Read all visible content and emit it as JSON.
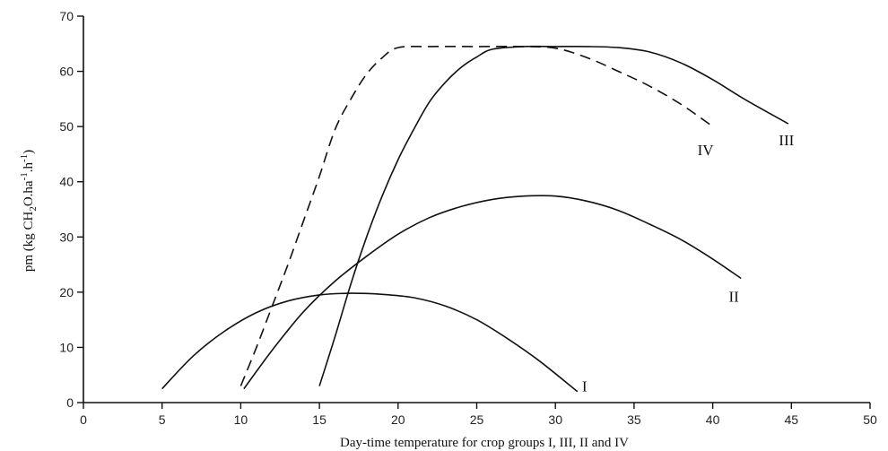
{
  "chart_data": {
    "type": "line",
    "xlabel": "Day-time temperature for crop groups I, III, II and IV",
    "ylabel_parts": [
      "pm (kg CH",
      "2",
      "O.ha",
      "-1",
      ".h",
      "-1",
      ")"
    ],
    "xlim": [
      0,
      50
    ],
    "ylim": [
      0,
      70
    ],
    "xticks": [
      0,
      5,
      10,
      15,
      20,
      25,
      30,
      35,
      40,
      45,
      50
    ],
    "yticks": [
      0,
      10,
      20,
      30,
      40,
      50,
      60,
      70
    ],
    "grid": false,
    "legend": "none",
    "series": [
      {
        "name": "I",
        "style": "solid",
        "x": [
          5,
          7,
          9,
          11,
          13,
          15,
          17,
          19,
          21,
          23,
          25,
          27,
          29,
          31.4
        ],
        "y": [
          2.5,
          8.5,
          13,
          16.3,
          18.4,
          19.5,
          19.8,
          19.6,
          19,
          17.5,
          15,
          11.5,
          7.5,
          2
        ]
      },
      {
        "name": "II",
        "style": "solid",
        "x": [
          10.2,
          12,
          14,
          16,
          18,
          20,
          22,
          24,
          26,
          28,
          30,
          32,
          34,
          36,
          38,
          40,
          41.8
        ],
        "y": [
          2.5,
          9.5,
          16.5,
          22,
          26.5,
          30.5,
          33.5,
          35.5,
          36.8,
          37.4,
          37.4,
          36.5,
          34.8,
          32.3,
          29.5,
          26,
          22.5
        ]
      },
      {
        "name": "III",
        "style": "solid",
        "x": [
          15,
          16,
          17,
          18,
          19,
          20,
          21,
          22,
          23,
          24,
          25,
          26,
          28,
          30,
          32,
          34,
          36,
          38,
          40,
          42,
          44.8
        ],
        "y": [
          3,
          12,
          21.5,
          30,
          37.5,
          44,
          49.5,
          54.5,
          58,
          60.7,
          62.6,
          64,
          64.5,
          64.5,
          64.5,
          64.3,
          63.5,
          61.5,
          58.5,
          55,
          50.5
        ]
      },
      {
        "name": "IV",
        "style": "dashed",
        "x": [
          10,
          11,
          12,
          13,
          14,
          15,
          16,
          17,
          18,
          19,
          20,
          22,
          25,
          28,
          30,
          32,
          34,
          36,
          38,
          40
        ],
        "y": [
          3,
          10,
          17.5,
          25,
          33,
          41,
          49.5,
          55,
          59.5,
          62.5,
          64.3,
          64.5,
          64.5,
          64.5,
          64.2,
          62.5,
          60,
          57.3,
          54,
          50
        ]
      }
    ]
  }
}
